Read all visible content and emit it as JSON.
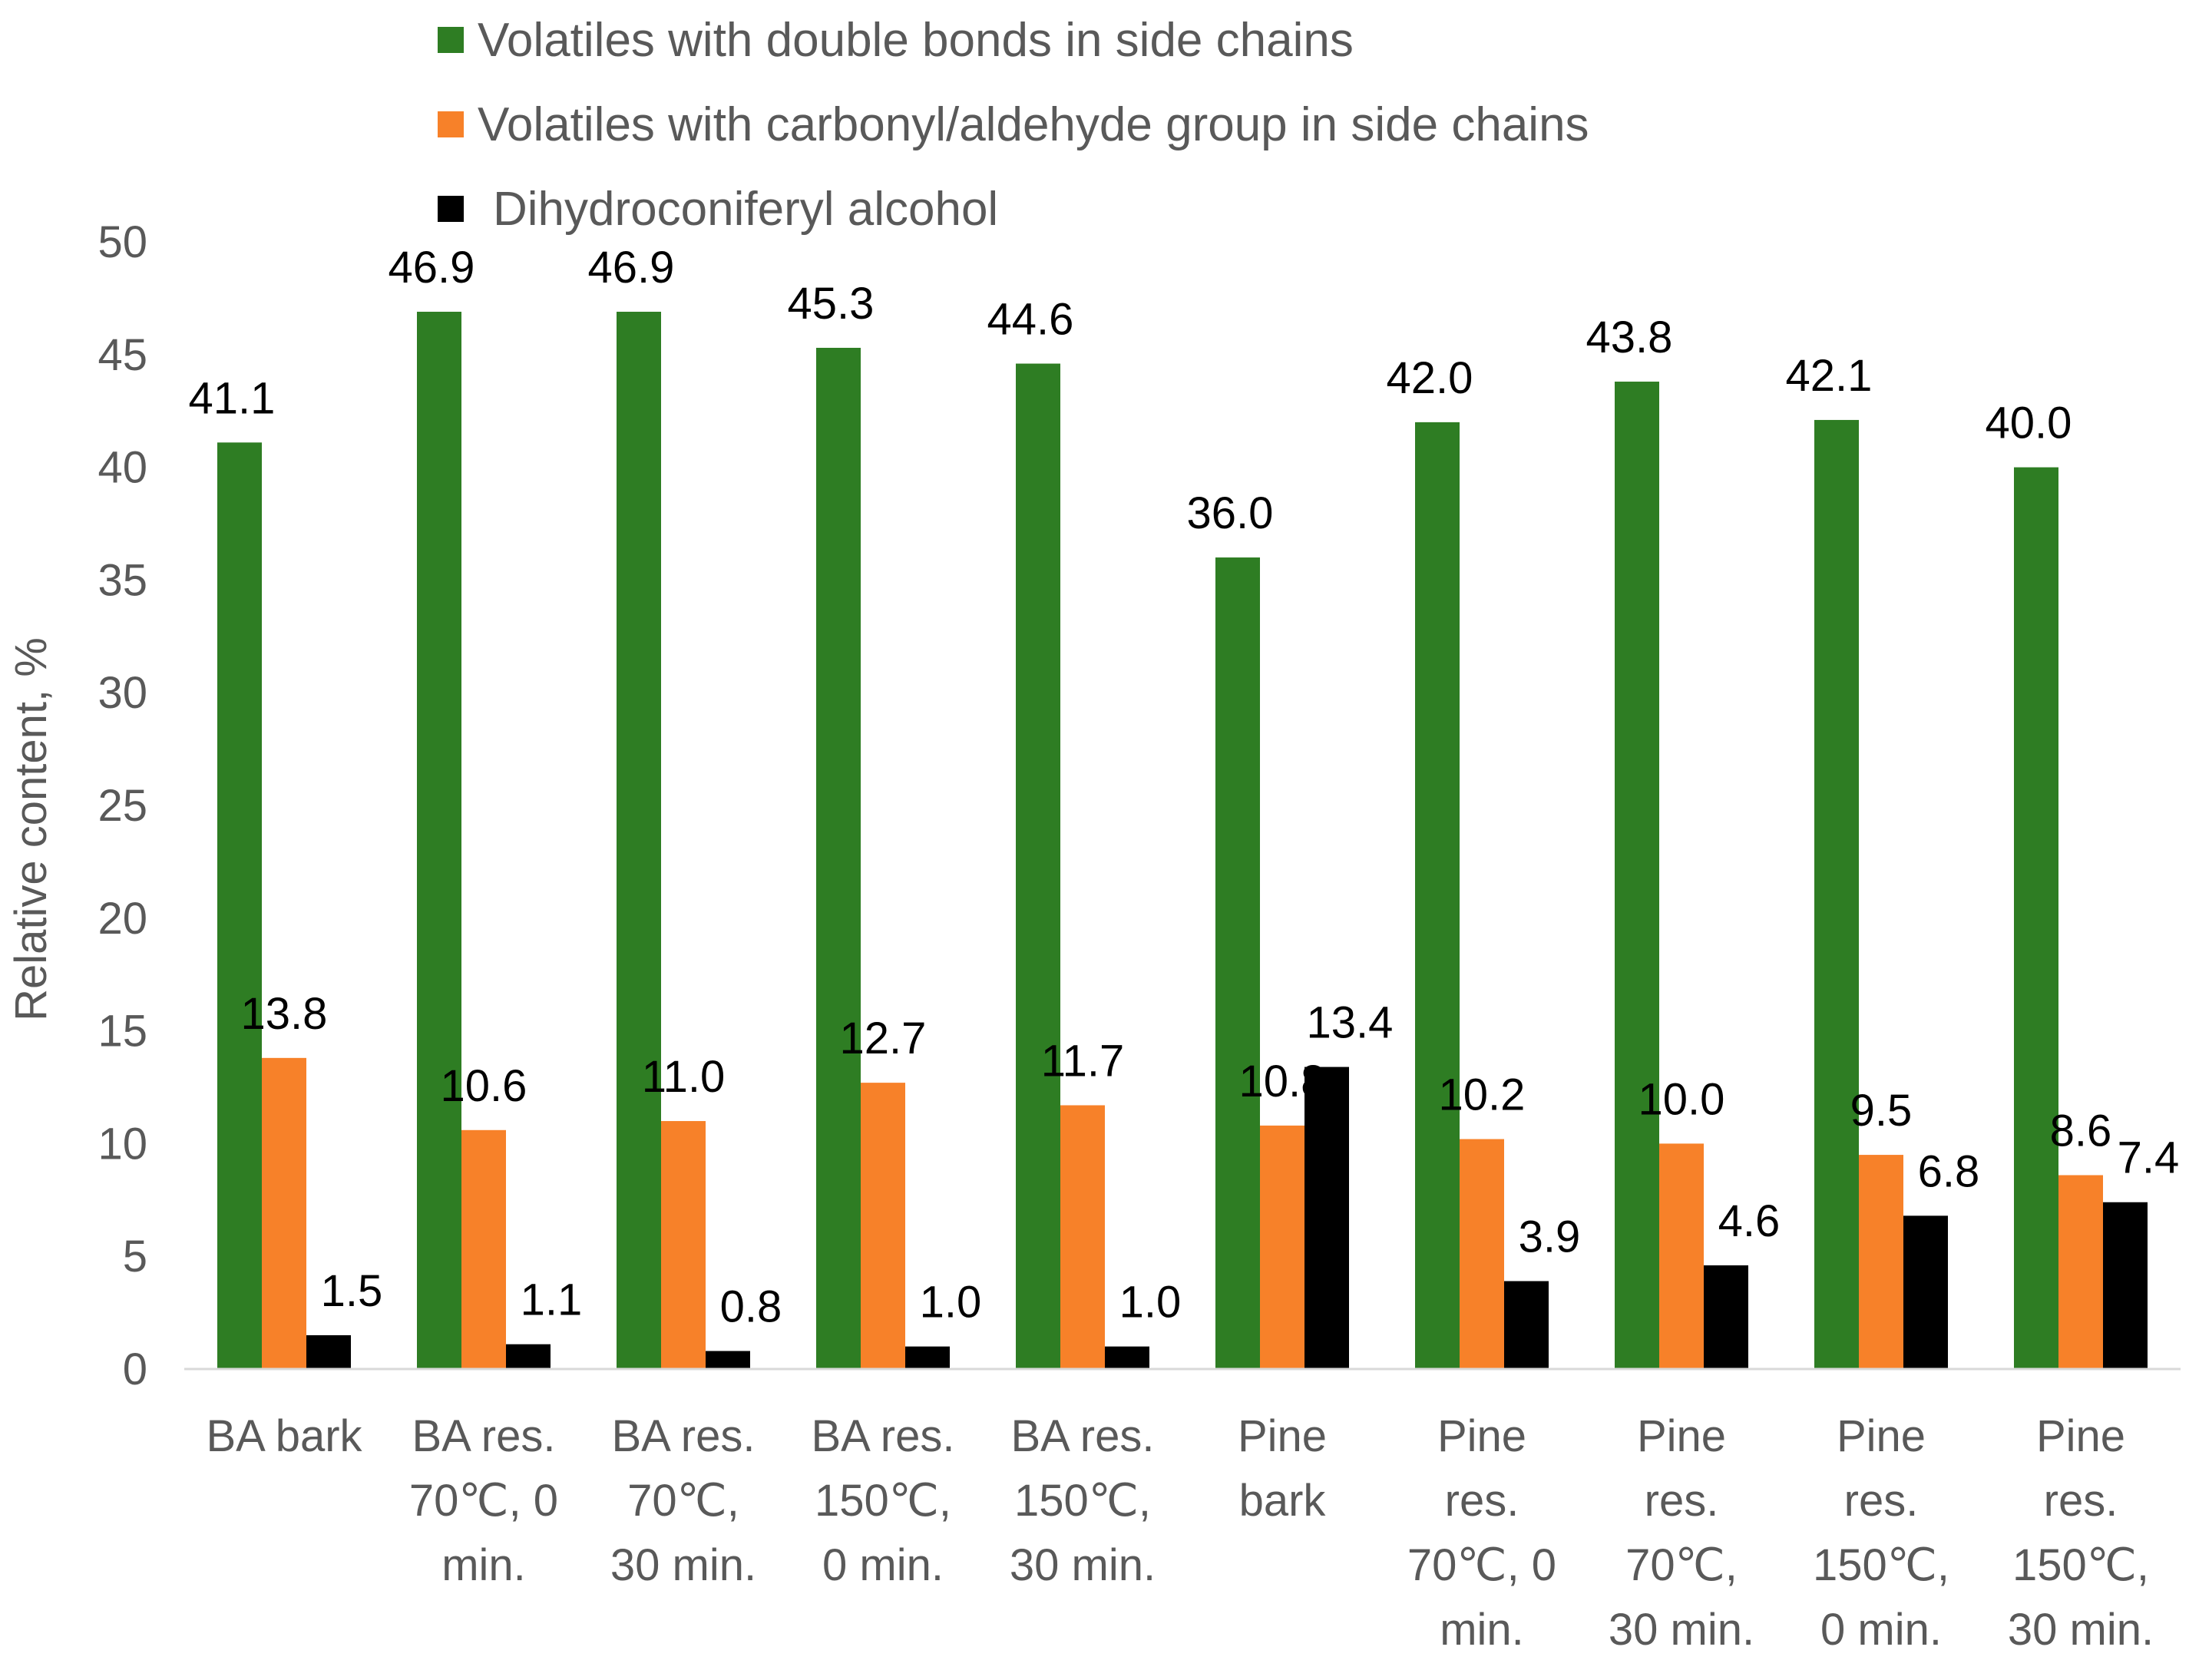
{
  "chart_data": {
    "type": "bar",
    "ylabel": "Relative content, %",
    "ylim": [
      0,
      50
    ],
    "yticks": [
      0,
      5,
      10,
      15,
      20,
      25,
      30,
      35,
      40,
      45,
      50
    ],
    "grid": false,
    "legend_position": "top",
    "categories": [
      [
        "BA bark"
      ],
      [
        "BA res.",
        "70℃, 0",
        "min."
      ],
      [
        "BA res.",
        "70℃,",
        "30 min."
      ],
      [
        "BA res.",
        "150℃,",
        "0 min."
      ],
      [
        "BA res.",
        "150℃,",
        "30 min."
      ],
      [
        "Pine",
        "bark"
      ],
      [
        "Pine",
        "res.",
        "70℃, 0",
        "min."
      ],
      [
        "Pine",
        "res.",
        "70℃,",
        "30 min."
      ],
      [
        "Pine",
        "res.",
        "150℃,",
        "0 min."
      ],
      [
        "Pine",
        "res.",
        "150℃,",
        "30 min."
      ]
    ],
    "series": [
      {
        "name": "Volatiles with double bonds in side chains",
        "color": "#2e7d23",
        "values": [
          41.1,
          46.9,
          46.9,
          45.3,
          44.6,
          36.0,
          42.0,
          43.8,
          42.1,
          40.0
        ],
        "labels": [
          "41.1",
          "46.9",
          "46.9",
          "45.3",
          "44.6",
          "36.0",
          "42.0",
          "43.8",
          "42.1",
          "40.0"
        ]
      },
      {
        "name": "Volatiles with carbonyl/aldehyde group in side chains",
        "color": "#f78129",
        "values": [
          13.8,
          10.6,
          11.0,
          12.7,
          11.7,
          10.8,
          10.2,
          10.0,
          9.5,
          8.6
        ],
        "labels": [
          "13.8",
          "10.6",
          "11.0",
          "12.7",
          "11.7",
          "10.8",
          "10.2",
          "10.0",
          "9.5",
          "8.6"
        ]
      },
      {
        "name": "Dihydroconiferyl alcohol",
        "color": "#000000",
        "values": [
          1.5,
          1.1,
          0.8,
          1.0,
          1.0,
          13.4,
          3.9,
          4.6,
          6.8,
          7.4
        ],
        "labels": [
          "1.5",
          "1.1",
          "0.8",
          "1.0",
          "1.0",
          "13.4",
          "3.9",
          "4.6",
          "6.8",
          "7.4"
        ]
      }
    ]
  }
}
